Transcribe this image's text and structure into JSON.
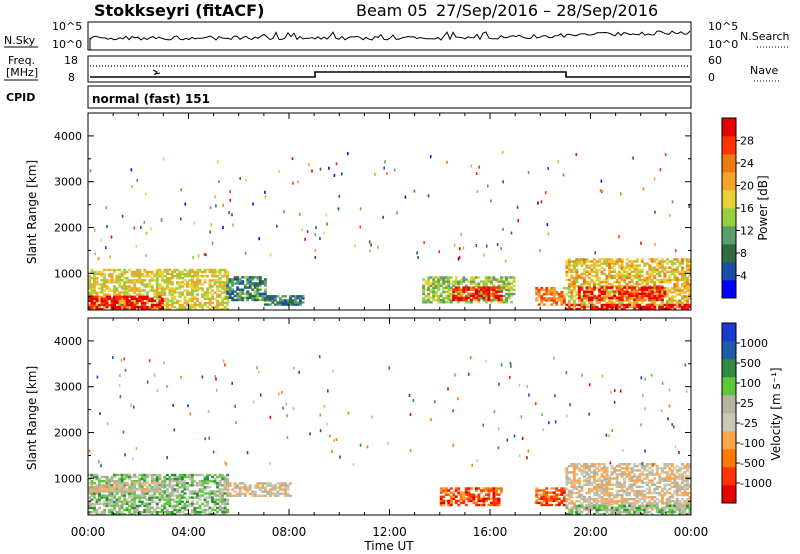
{
  "header": {
    "station": "Stokkseyri (fitACF)",
    "beam": "Beam 05",
    "date_range": "27/Sep/2016 – 28/Sep/2016"
  },
  "noise_panel": {
    "left_label": "N.Sky",
    "right_label": "N.Search",
    "ticks_left": [
      "10^5",
      "10^0"
    ],
    "ticks_right": [
      "10^5",
      "10^0"
    ]
  },
  "freq_panel": {
    "left_label_1": "Freq.",
    "left_label_2": "[MHz]",
    "ticks_left": [
      "18",
      "8"
    ],
    "right_label": "Nave",
    "ticks_right": [
      "60",
      "0"
    ]
  },
  "cpid": {
    "label": "CPID",
    "value": "normal (fast) 151"
  },
  "colors": {
    "power_scale": [
      "#0000ff",
      "#1c4fa6",
      "#2e6e3e",
      "#5aa06a",
      "#94d03c",
      "#e8d23a",
      "#f2a52a",
      "#f07a12",
      "#ff3300",
      "#e80000"
    ],
    "velocity_scale": [
      "#e60000",
      "#ff3300",
      "#ff7a00",
      "#ffa64d",
      "#c8c8b4",
      "#b4b4a0",
      "#5cc83c",
      "#2e8c3c",
      "#1f5ca8",
      "#1a3cd0"
    ]
  },
  "chart_data": [
    {
      "type": "heatmap",
      "name": "power",
      "xlabel": "Time UT",
      "ylabel": "Slant Range [km]",
      "x_ticks": [
        "00:00",
        "04:00",
        "08:00",
        "12:00",
        "16:00",
        "20:00",
        "00:00"
      ],
      "y_ticks": [
        1000,
        2000,
        3000,
        4000
      ],
      "ylim": [
        200,
        4500
      ],
      "xlim_hours": [
        0,
        24
      ],
      "colorbar_label": "Power [dB]",
      "colorbar_ticks": [
        "4",
        "8",
        "12",
        "16",
        "20",
        "24",
        "28"
      ],
      "regions": [
        {
          "t": [
            0,
            5.5
          ],
          "r": [
            200,
            1100
          ],
          "level": 0.55
        },
        {
          "t": [
            0,
            3.0
          ],
          "r": [
            200,
            500
          ],
          "level": 0.95
        },
        {
          "t": [
            5.5,
            7.0
          ],
          "r": [
            400,
            900
          ],
          "level": 0.3
        },
        {
          "t": [
            7.0,
            8.5
          ],
          "r": [
            300,
            500
          ],
          "level": 0.25
        },
        {
          "t": [
            13.3,
            17.0
          ],
          "r": [
            350,
            900
          ],
          "level": 0.45
        },
        {
          "t": [
            14.5,
            16.5
          ],
          "r": [
            400,
            700
          ],
          "level": 0.9
        },
        {
          "t": [
            17.8,
            19.0
          ],
          "r": [
            300,
            700
          ],
          "level": 0.75
        },
        {
          "t": [
            19.0,
            24.0
          ],
          "r": [
            250,
            1300
          ],
          "level": 0.6
        },
        {
          "t": [
            19.5,
            23.0
          ],
          "r": [
            400,
            700
          ],
          "level": 0.9
        },
        {
          "t": [
            19.0,
            24.0
          ],
          "r": [
            200,
            320
          ],
          "level": 0.95
        }
      ]
    },
    {
      "type": "heatmap",
      "name": "velocity",
      "xlabel": "Time UT",
      "ylabel": "Slant Range [km]",
      "x_ticks": [
        "00:00",
        "04:00",
        "08:00",
        "12:00",
        "16:00",
        "20:00",
        "00:00"
      ],
      "y_ticks": [
        1000,
        2000,
        3000,
        4000
      ],
      "ylim": [
        200,
        4500
      ],
      "xlim_hours": [
        0,
        24
      ],
      "colorbar_label": "Velocity [m s⁻¹]",
      "colorbar_ticks": [
        "1000",
        "500",
        "100",
        "25",
        "-25",
        "-100",
        "-500",
        "-1000"
      ],
      "regions": [
        {
          "t": [
            0,
            5.5
          ],
          "r": [
            200,
            1100
          ],
          "level": 0.6
        },
        {
          "t": [
            0,
            3.0
          ],
          "r": [
            700,
            900
          ],
          "level": 0.45
        },
        {
          "t": [
            5.5,
            8.0
          ],
          "r": [
            600,
            900
          ],
          "level": 0.45
        },
        {
          "t": [
            14.0,
            16.5
          ],
          "r": [
            400,
            800
          ],
          "level": 0.2
        },
        {
          "t": [
            17.8,
            19.0
          ],
          "r": [
            400,
            800
          ],
          "level": 0.2
        },
        {
          "t": [
            19.0,
            24.0
          ],
          "r": [
            300,
            1300
          ],
          "level": 0.45
        },
        {
          "t": [
            19.0,
            24.0
          ],
          "r": [
            200,
            400
          ],
          "level": 0.6
        }
      ]
    }
  ]
}
